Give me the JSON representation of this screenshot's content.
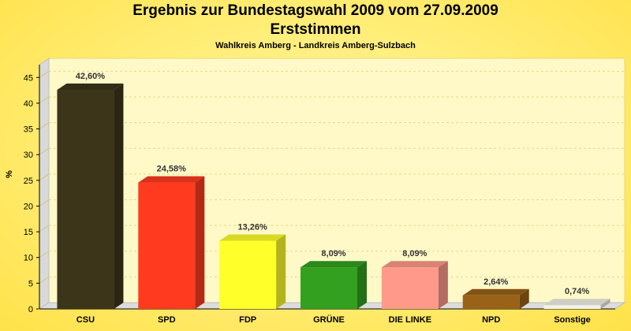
{
  "chart_data": {
    "type": "bar",
    "title_line1": "Ergebnis zur Bundestagswahl 2009 vom 27.09.2009",
    "title_line2": "Erststimmen",
    "subtitle": "Wahlkreis Amberg - Landkreis Amberg-Sulzbach",
    "ylabel": "%",
    "xlabel": "",
    "ylim": [
      0,
      47.5
    ],
    "yticks": [
      "0",
      "5",
      "10",
      "15",
      "20",
      "25",
      "30",
      "35",
      "40",
      "45"
    ],
    "categories": [
      "CSU",
      "SPD",
      "FDP",
      "GRÜNE",
      "DIE LINKE",
      "NPD",
      "Sonstige"
    ],
    "values": [
      42.6,
      24.58,
      13.26,
      8.09,
      8.09,
      2.64,
      0.74
    ],
    "value_labels": [
      "42,60%",
      "24,58%",
      "13,26%",
      "8,09%",
      "8,09%",
      "2,64%",
      "0,74%"
    ],
    "colors": [
      "#3d3519",
      "#ff3a1f",
      "#ffff2a",
      "#33a01f",
      "#ff9a8a",
      "#9a6218",
      "#f2f2e6"
    ],
    "grid": true,
    "background_color": "#ffee7a"
  }
}
